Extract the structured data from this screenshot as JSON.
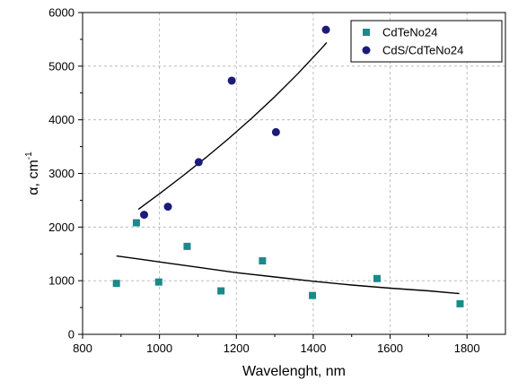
{
  "chart_data": {
    "type": "scatter",
    "xlabel": "Wavelenght, nm",
    "ylabel": "α, cm",
    "ylabel_superscript": "-1",
    "xlim": [
      800,
      1900
    ],
    "ylim": [
      0,
      6000
    ],
    "x_ticks": [
      800,
      1000,
      1200,
      1400,
      1600,
      1800
    ],
    "x_minor_ticks": [
      900,
      1100,
      1300,
      1500,
      1700
    ],
    "y_ticks": [
      0,
      1000,
      2000,
      3000,
      4000,
      5000,
      6000
    ],
    "y_minor_ticks": [
      500,
      1500,
      2500,
      3500,
      4500,
      5500
    ],
    "grid": true,
    "legend_position": "top-right",
    "series": [
      {
        "name": "CdTeNo24",
        "marker": "square",
        "color": "#1a8a8a",
        "points": [
          [
            888,
            950
          ],
          [
            940,
            2080
          ],
          [
            998,
            975
          ],
          [
            1072,
            1640
          ],
          [
            1160,
            810
          ],
          [
            1268,
            1370
          ],
          [
            1398,
            725
          ],
          [
            1566,
            1040
          ],
          [
            1782,
            570
          ]
        ],
        "fit": [
          [
            888,
            1460
          ],
          [
            950,
            1400
          ],
          [
            1020,
            1330
          ],
          [
            1100,
            1250
          ],
          [
            1200,
            1150
          ],
          [
            1300,
            1070
          ],
          [
            1400,
            990
          ],
          [
            1500,
            920
          ],
          [
            1600,
            860
          ],
          [
            1700,
            810
          ],
          [
            1780,
            760
          ]
        ]
      },
      {
        "name": "CdS/CdTeNo24",
        "marker": "circle",
        "color": "#1b1b7a",
        "points": [
          [
            960,
            2230
          ],
          [
            1022,
            2380
          ],
          [
            1102,
            3210
          ],
          [
            1188,
            4730
          ],
          [
            1303,
            3770
          ],
          [
            1433,
            5680
          ]
        ],
        "fit": [
          [
            945,
            2330
          ],
          [
            1000,
            2620
          ],
          [
            1060,
            2950
          ],
          [
            1120,
            3290
          ],
          [
            1180,
            3650
          ],
          [
            1240,
            4030
          ],
          [
            1300,
            4430
          ],
          [
            1360,
            4860
          ],
          [
            1420,
            5320
          ],
          [
            1435,
            5440
          ]
        ]
      }
    ]
  }
}
